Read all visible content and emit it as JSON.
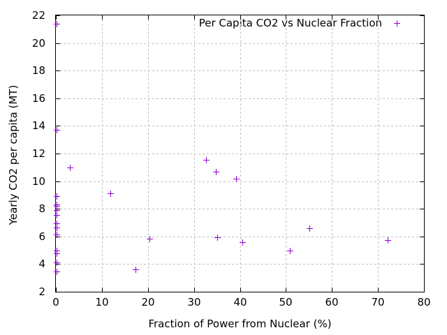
{
  "figure": {
    "background": "#ffffff",
    "text_color": "#000000"
  },
  "chart_data": {
    "type": "scatter",
    "title": "Per Capita CO2 vs Nuclear Fraction",
    "xlabel": "Fraction of Power from Nuclear (%)",
    "ylabel": "Yearly CO2 per capita (MT)",
    "xlim": [
      0,
      80
    ],
    "ylim": [
      2,
      22
    ],
    "x_ticks": [
      0,
      10,
      20,
      30,
      40,
      50,
      60,
      70,
      80
    ],
    "y_ticks": [
      2,
      4,
      6,
      8,
      10,
      12,
      14,
      16,
      18,
      20,
      22
    ],
    "grid": "dashed",
    "grid_color": "#c0c0c0",
    "axis_color": "#000000",
    "legend_position": "inside-top-right",
    "legend_label": "Per Capita CO2 vs Nuclear Fraction",
    "marker": "plus",
    "marker_color": "#9400d3",
    "points": [
      [
        0.1,
        21.4
      ],
      [
        0.1,
        13.7
      ],
      [
        0.1,
        8.9
      ],
      [
        0.1,
        8.3
      ],
      [
        0.1,
        8.2
      ],
      [
        0.1,
        7.9
      ],
      [
        0.1,
        7.55
      ],
      [
        0.1,
        6.95
      ],
      [
        0.1,
        6.65
      ],
      [
        0.1,
        6.15
      ],
      [
        0.1,
        5.0
      ],
      [
        0.1,
        4.8
      ],
      [
        0.1,
        4.1
      ],
      [
        0.1,
        3.45
      ],
      [
        3.0,
        11.0
      ],
      [
        11.8,
        9.1
      ],
      [
        17.3,
        3.6
      ],
      [
        20.4,
        5.85
      ],
      [
        32.6,
        11.55
      ],
      [
        34.7,
        10.7
      ],
      [
        35.0,
        5.95
      ],
      [
        39.2,
        10.2
      ],
      [
        40.6,
        5.6
      ],
      [
        50.8,
        5.0
      ],
      [
        55.1,
        6.6
      ],
      [
        72.1,
        5.75
      ]
    ]
  }
}
